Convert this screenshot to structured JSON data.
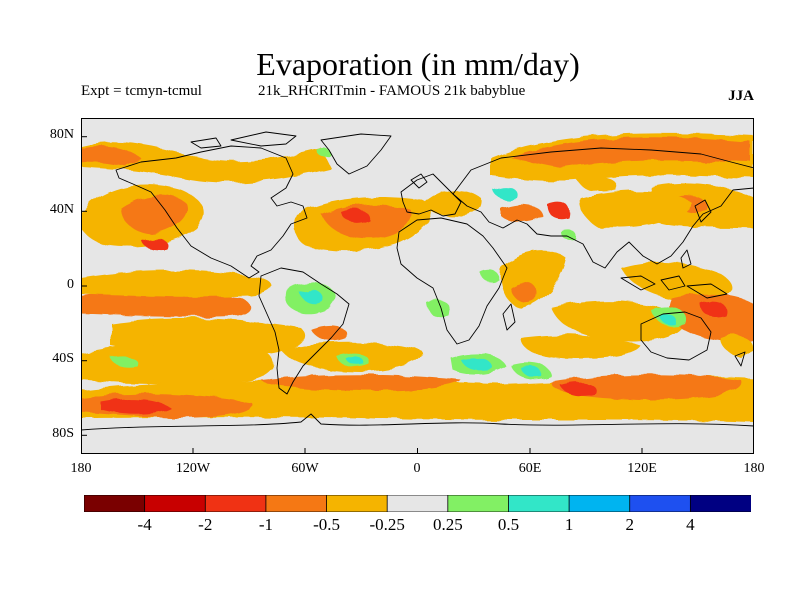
{
  "title": "Evaporation (in mm/day)",
  "subtitle_left": "Expt = tcmyn-tcmul",
  "subtitle_center": "21k_RHCRITmin - FAMOUS 21k babyblue",
  "season": "JJA",
  "lat_labels": [
    "80N",
    "40N",
    "0",
    "40S",
    "80S"
  ],
  "lon_labels": [
    "180",
    "120W",
    "60W",
    "0",
    "60E",
    "120E",
    "180"
  ],
  "colorbar": {
    "colors": [
      "#7a0000",
      "#c80000",
      "#f03214",
      "#f57814",
      "#f5b400",
      "#e6e6e6",
      "#82f064",
      "#32e6c8",
      "#00b4f0",
      "#1e50f0",
      "#000082"
    ],
    "labels": [
      "-4",
      "-2",
      "-1",
      "-0.5",
      "-0.25",
      "0.25",
      "0.5",
      "1",
      "2",
      "4"
    ]
  },
  "map": {
    "background_color": "#e6e6e6",
    "coastline_color": "#000000"
  }
}
